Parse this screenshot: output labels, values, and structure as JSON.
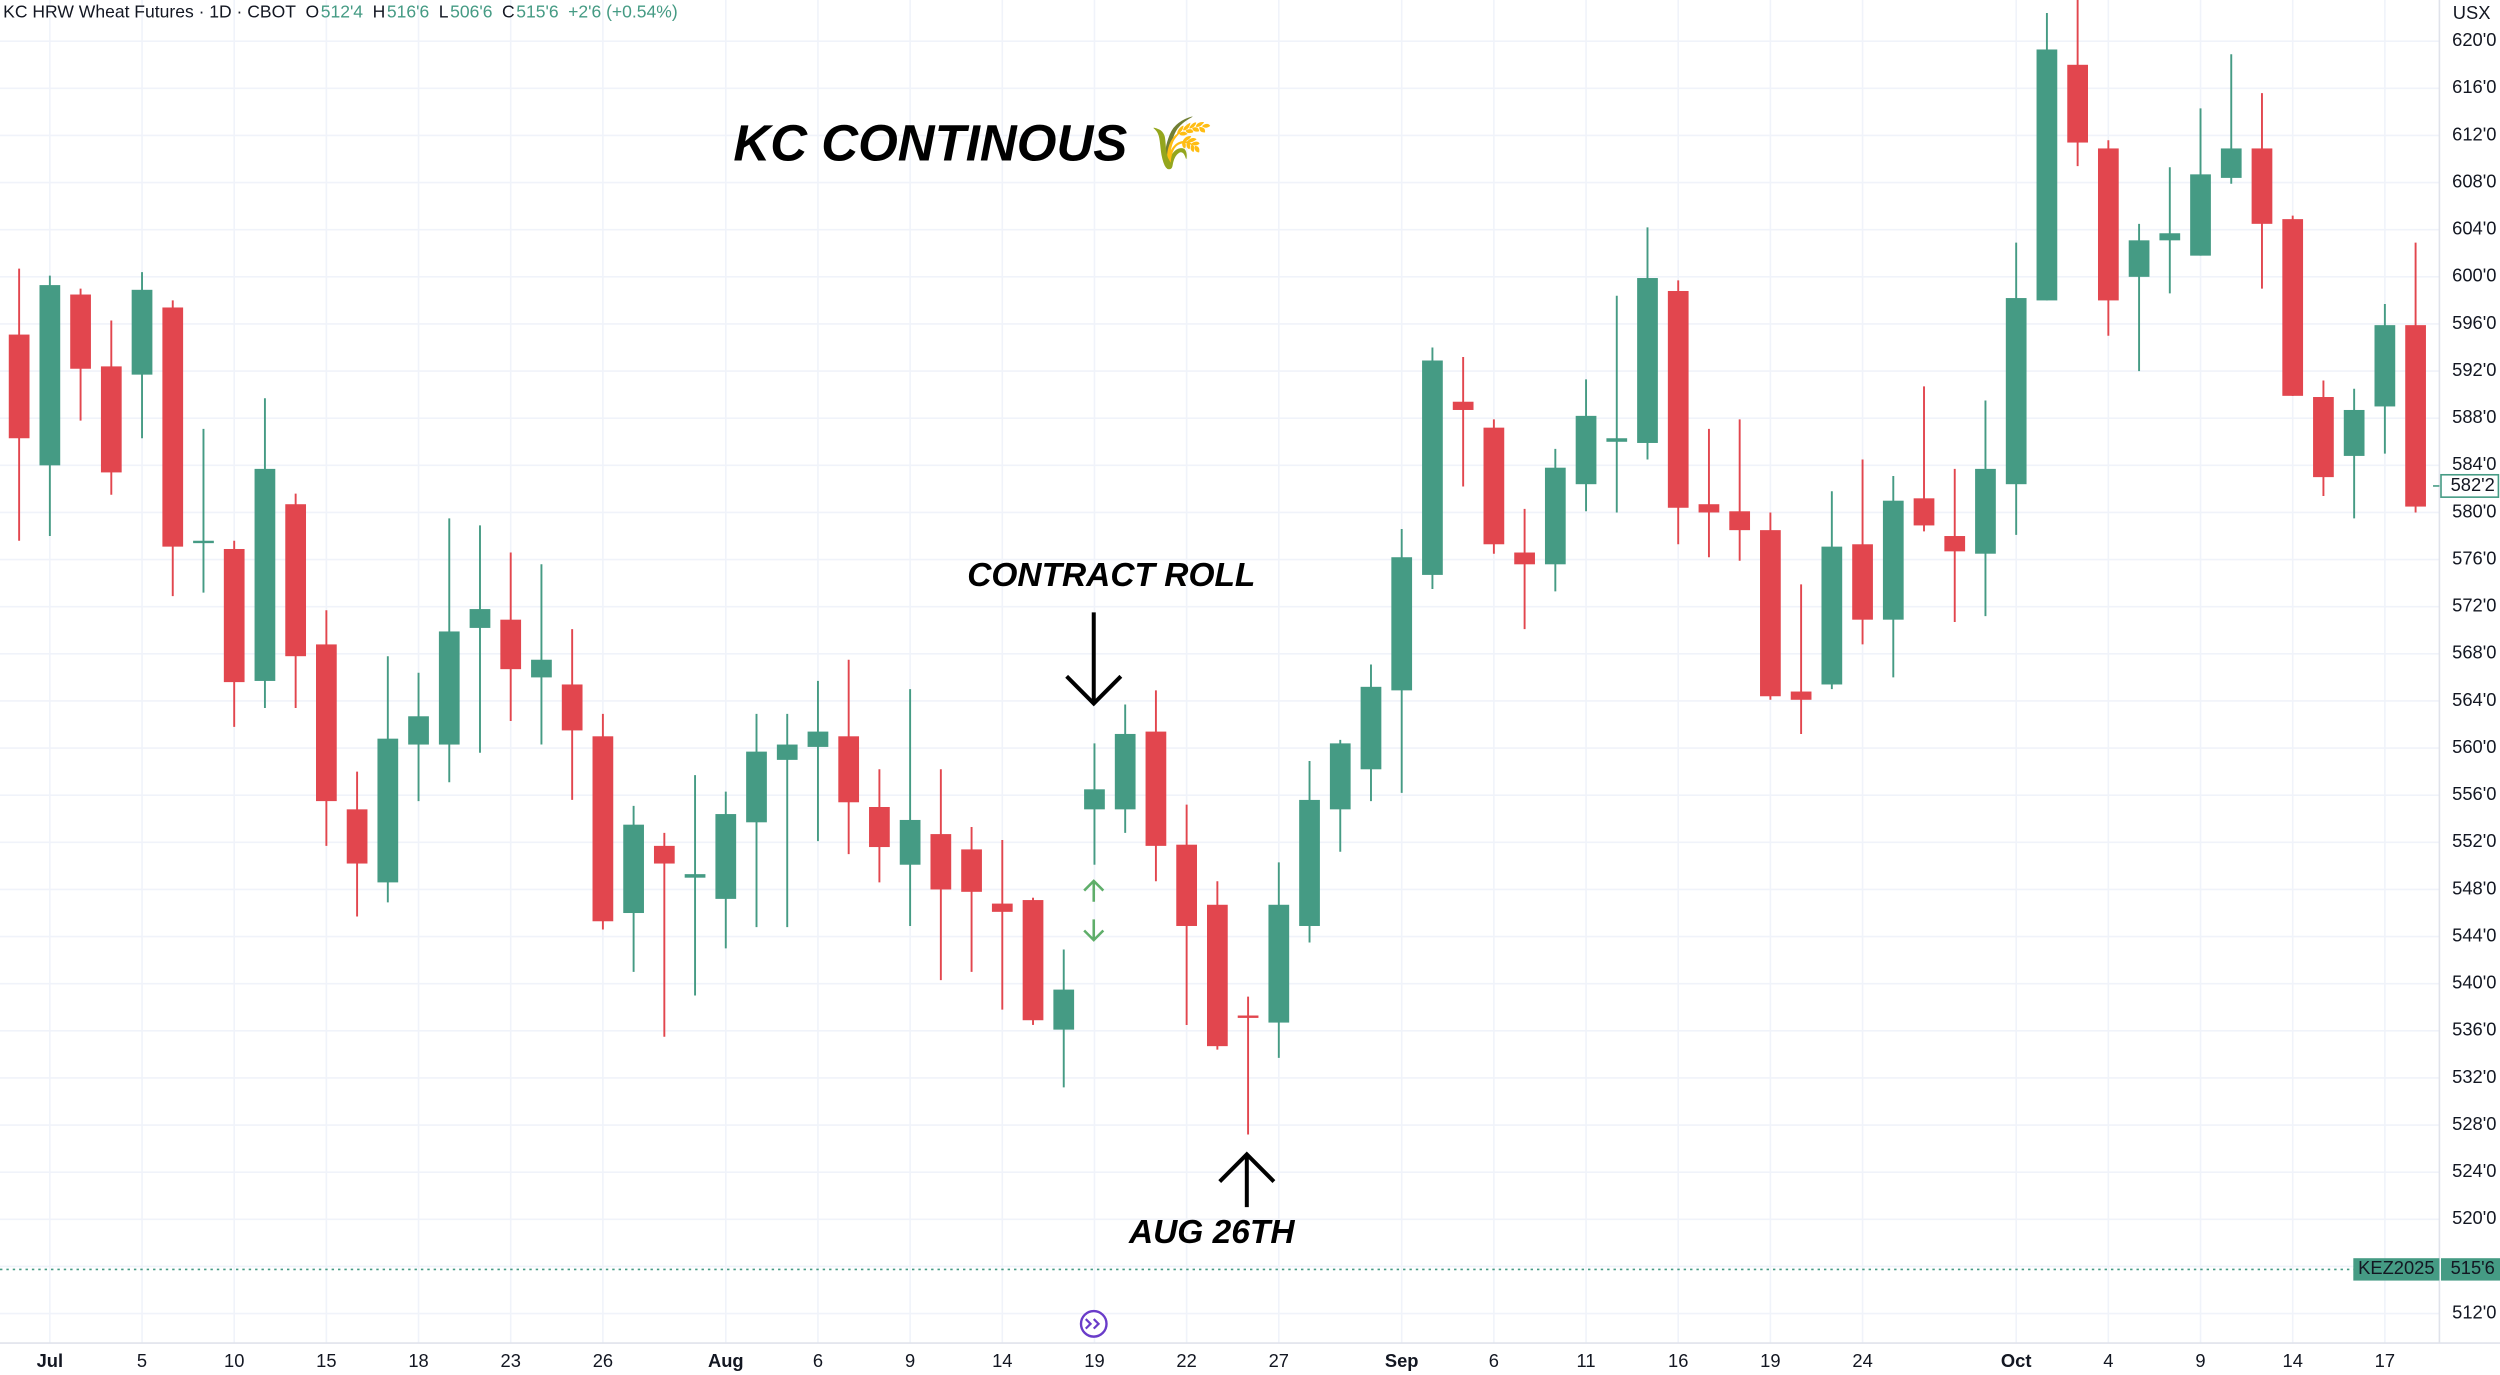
{
  "header": {
    "symbol": "KC HRW Wheat Futures · 1D · CBOT",
    "ohlc": [
      {
        "label": "O",
        "value": "512'4"
      },
      {
        "label": "H",
        "value": "516'6"
      },
      {
        "label": "L",
        "value": "506'6"
      },
      {
        "label": "C",
        "value": "515'6"
      }
    ],
    "change": "+2'6 (+0.54%)"
  },
  "chart_data": {
    "type": "candlestick",
    "title": "KC CONTINOUS 🌾",
    "annotations": [
      "CONTRACT ROLL",
      "AUG 26TH"
    ],
    "unit": "USX",
    "up_color": "#459b84",
    "down_color": "#e2464e",
    "grid": true,
    "categories": [
      null,
      "Jul",
      null,
      null,
      "5",
      null,
      null,
      "10",
      null,
      null,
      "15",
      null,
      null,
      "18",
      null,
      null,
      "23",
      null,
      null,
      "26",
      null,
      null,
      null,
      "Aug",
      null,
      null,
      "6",
      null,
      null,
      "9",
      null,
      null,
      "14",
      null,
      null,
      "19",
      null,
      null,
      "22",
      null,
      null,
      "27",
      null,
      null,
      null,
      "Sep",
      null,
      null,
      "6",
      null,
      null,
      "11",
      null,
      null,
      "16",
      null,
      null,
      "19",
      null,
      null,
      "24",
      null,
      null,
      null,
      null,
      "Oct",
      null,
      null,
      "4",
      null,
      null,
      "9",
      null,
      null,
      "14",
      null,
      null,
      "17",
      null
    ],
    "open": [
      595.1,
      584.0,
      598.5,
      592.4,
      591.7,
      597.4,
      577.4,
      576.9,
      565.7,
      580.7,
      568.8,
      554.8,
      548.6,
      560.3,
      560.3,
      570.2,
      570.9,
      566.0,
      565.4,
      561.0,
      546.0,
      551.7,
      549.0,
      547.2,
      553.7,
      559.0,
      560.1,
      561.0,
      555.0,
      550.1,
      552.7,
      551.4,
      546.8,
      547.1,
      536.1,
      554.8,
      554.8,
      561.4,
      551.8,
      546.7,
      537.3,
      536.7,
      544.9,
      554.8,
      558.2,
      564.9,
      574.7,
      589.4,
      587.2,
      576.6,
      575.6,
      582.4,
      586.0,
      585.9,
      598.8,
      580.7,
      580.1,
      578.5,
      564.8,
      565.4,
      577.3,
      570.9,
      581.2,
      578.0,
      576.5,
      582.4,
      598.0,
      618.0,
      610.9,
      600.0,
      603.1,
      601.8,
      608.4,
      610.9,
      604.9,
      589.8,
      584.8,
      589.0,
      595.9
    ],
    "high": [
      600.7,
      600.1,
      599.0,
      596.3,
      600.4,
      598.0,
      587.1,
      577.6,
      589.7,
      581.6,
      571.7,
      558.0,
      567.8,
      566.4,
      579.5,
      578.9,
      576.6,
      575.6,
      570.1,
      562.9,
      555.1,
      552.8,
      557.7,
      556.3,
      562.9,
      562.9,
      565.7,
      567.5,
      558.2,
      565.0,
      558.2,
      553.3,
      552.2,
      547.3,
      542.9,
      560.4,
      563.7,
      564.9,
      555.2,
      548.7,
      538.9,
      550.3,
      558.9,
      560.7,
      567.1,
      578.6,
      594.0,
      593.2,
      587.9,
      580.3,
      585.4,
      591.3,
      598.4,
      604.2,
      599.7,
      587.1,
      587.9,
      580.0,
      573.9,
      581.8,
      584.5,
      583.1,
      590.7,
      583.7,
      589.5,
      602.9,
      622.4,
      623.5,
      611.6,
      604.5,
      609.3,
      614.3,
      618.9,
      615.6,
      605.2,
      591.2,
      590.5,
      597.7,
      602.9
    ],
    "low": [
      577.6,
      578.0,
      587.8,
      581.5,
      586.3,
      572.9,
      573.2,
      561.8,
      563.4,
      563.4,
      551.7,
      545.7,
      546.9,
      555.5,
      557.1,
      559.6,
      562.3,
      560.3,
      555.6,
      544.6,
      541.0,
      535.5,
      539.0,
      543.0,
      544.8,
      544.8,
      552.1,
      551.0,
      548.6,
      544.9,
      540.3,
      541.0,
      537.8,
      536.5,
      531.2,
      550.1,
      552.8,
      548.7,
      536.5,
      534.4,
      527.2,
      533.7,
      543.5,
      551.2,
      555.5,
      556.2,
      573.5,
      582.2,
      576.5,
      570.1,
      573.3,
      580.1,
      580.0,
      584.5,
      577.3,
      576.2,
      575.9,
      564.1,
      561.2,
      565.0,
      568.8,
      566.0,
      578.4,
      570.7,
      571.2,
      578.1,
      598.0,
      609.4,
      595.0,
      592.0,
      598.6,
      601.8,
      607.9,
      599.0,
      589.9,
      581.4,
      579.5,
      585.0,
      580.0
    ],
    "close": [
      586.3,
      599.3,
      592.2,
      583.4,
      598.9,
      577.1,
      577.6,
      565.6,
      583.7,
      567.8,
      555.5,
      550.2,
      560.8,
      562.7,
      569.9,
      571.8,
      566.7,
      567.5,
      561.5,
      545.3,
      553.5,
      550.2,
      549.3,
      554.4,
      559.7,
      560.3,
      561.4,
      555.4,
      551.6,
      553.9,
      548.0,
      547.8,
      546.1,
      536.9,
      539.5,
      556.5,
      561.2,
      551.7,
      544.9,
      534.7,
      537.1,
      546.7,
      555.6,
      560.4,
      565.2,
      576.2,
      592.9,
      588.7,
      577.3,
      575.6,
      583.8,
      588.2,
      586.3,
      599.9,
      580.4,
      580.0,
      578.5,
      564.4,
      564.1,
      577.1,
      570.9,
      581.0,
      578.9,
      576.7,
      583.7,
      598.2,
      619.3,
      611.4,
      598.0,
      603.1,
      603.7,
      608.7,
      610.9,
      604.5,
      589.9,
      583.0,
      588.7,
      595.9,
      580.5
    ],
    "last_price": {
      "value": 582.25,
      "label": "582'2"
    },
    "contract_line": {
      "name": "KEZ2025",
      "value": 515.75,
      "label": "515'6"
    },
    "ylim": [
      509.5,
      623.5
    ],
    "yticks": [
      {
        "value": 512,
        "label": "512'0"
      },
      {
        "value": 516,
        "label": "516'0"
      },
      {
        "value": 520,
        "label": "520'0"
      },
      {
        "value": 524,
        "label": "524'0"
      },
      {
        "value": 528,
        "label": "528'0"
      },
      {
        "value": 532,
        "label": "532'0"
      },
      {
        "value": 536,
        "label": "536'0"
      },
      {
        "value": 540,
        "label": "540'0"
      },
      {
        "value": 544,
        "label": "544'0"
      },
      {
        "value": 548,
        "label": "548'0"
      },
      {
        "value": 552,
        "label": "552'0"
      },
      {
        "value": 556,
        "label": "556'0"
      },
      {
        "value": 560,
        "label": "560'0"
      },
      {
        "value": 564,
        "label": "564'0"
      },
      {
        "value": 568,
        "label": "568'0"
      },
      {
        "value": 572,
        "label": "572'0"
      },
      {
        "value": 576,
        "label": "576'0"
      },
      {
        "value": 580,
        "label": "580'0"
      },
      {
        "value": 584,
        "label": "584'0"
      },
      {
        "value": 588,
        "label": "588'0"
      },
      {
        "value": 592,
        "label": "592'0"
      },
      {
        "value": 596,
        "label": "596'0"
      },
      {
        "value": 600,
        "label": "600'0"
      },
      {
        "value": 604,
        "label": "604'0"
      },
      {
        "value": 608,
        "label": "608'0"
      },
      {
        "value": 612,
        "label": "612'0"
      },
      {
        "value": 616,
        "label": "616'0"
      },
      {
        "value": 620,
        "label": "620'0"
      }
    ]
  }
}
